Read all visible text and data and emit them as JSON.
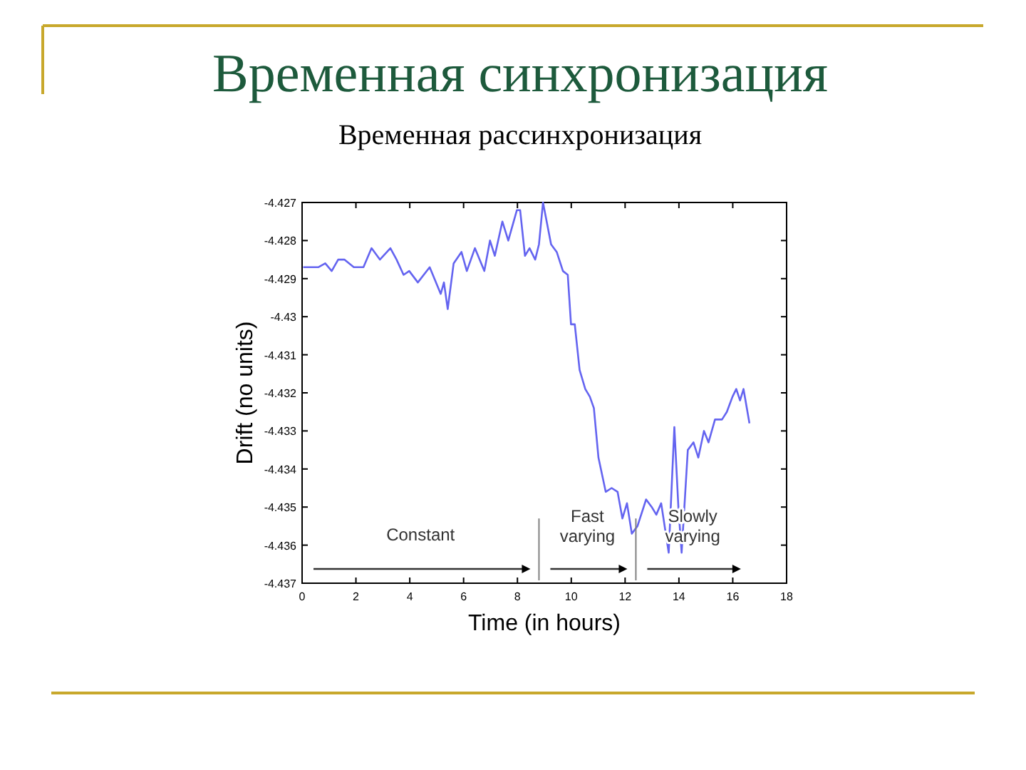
{
  "chart_data": {
    "type": "line",
    "title": "Временная синхронизация",
    "subtitle": "Временная рассинхронизация",
    "xlabel": "Time (in hours)",
    "ylabel": "Drift (no units)",
    "xlim": [
      0,
      18
    ],
    "xticks": [
      0,
      2,
      4,
      6,
      8,
      10,
      12,
      14,
      16,
      18
    ],
    "ylim": [
      -4.437,
      -4.427
    ],
    "yticks": [
      -4.437,
      -4.436,
      -4.435,
      -4.434,
      -4.433,
      -4.432,
      -4.431,
      -4.43,
      -4.429,
      -4.428,
      -4.427
    ],
    "grid": false,
    "series": [
      {
        "color": "#6464f0",
        "x": [
          0.04,
          0.6,
          0.86,
          1.1,
          1.34,
          1.57,
          1.92,
          2.28,
          2.58,
          2.89,
          3.28,
          3.51,
          3.77,
          3.98,
          4.3,
          4.74,
          5.15,
          5.27,
          5.41,
          5.63,
          5.92,
          6.12,
          6.42,
          6.77,
          6.98,
          7.16,
          7.44,
          7.66,
          7.98,
          8.1,
          8.28,
          8.45,
          8.66,
          8.8,
          8.95,
          9.25,
          9.46,
          9.69,
          9.87,
          9.99,
          10.13,
          10.31,
          10.52,
          10.69,
          10.84,
          11.01,
          11.28,
          11.5,
          11.72,
          11.9,
          12.07,
          12.25,
          12.46,
          12.78,
          12.99,
          13.16,
          13.34,
          13.62,
          13.83,
          13.98,
          14.1,
          14.33,
          14.54,
          14.72,
          14.93,
          15.1,
          15.34,
          15.6,
          15.78,
          15.99,
          16.13,
          16.27,
          16.4,
          16.62
        ],
        "values": [
          -4.4287,
          -4.4287,
          -4.4286,
          -4.4288,
          -4.4285,
          -4.4285,
          -4.4287,
          -4.4287,
          -4.4282,
          -4.4285,
          -4.4282,
          -4.4285,
          -4.4289,
          -4.4288,
          -4.4291,
          -4.4287,
          -4.4294,
          -4.4291,
          -4.4298,
          -4.4286,
          -4.4283,
          -4.4288,
          -4.4282,
          -4.4288,
          -4.428,
          -4.4284,
          -4.4275,
          -4.428,
          -4.4272,
          -4.4272,
          -4.4284,
          -4.4282,
          -4.4285,
          -4.4281,
          -4.427,
          -4.4281,
          -4.4283,
          -4.4288,
          -4.4289,
          -4.4302,
          -4.4302,
          -4.4314,
          -4.4319,
          -4.4321,
          -4.4324,
          -4.4337,
          -4.4346,
          -4.4345,
          -4.4346,
          -4.4353,
          -4.4349,
          -4.4357,
          -4.4355,
          -4.4348,
          -4.435,
          -4.4352,
          -4.4349,
          -4.4362,
          -4.4329,
          -4.435,
          -4.4362,
          -4.4335,
          -4.4333,
          -4.4337,
          -4.433,
          -4.4333,
          -4.4327,
          -4.4327,
          -4.4325,
          -4.4321,
          -4.4319,
          -4.4322,
          -4.4319,
          -4.4328
        ]
      }
    ],
    "ref_lines": [
      {
        "axis": "x",
        "value": 8.8,
        "color": "#808080"
      },
      {
        "axis": "x",
        "value": 12.4,
        "color": "#808080"
      }
    ],
    "annotations": [
      "Constant",
      "Fast varying",
      "Slowly varying"
    ]
  }
}
